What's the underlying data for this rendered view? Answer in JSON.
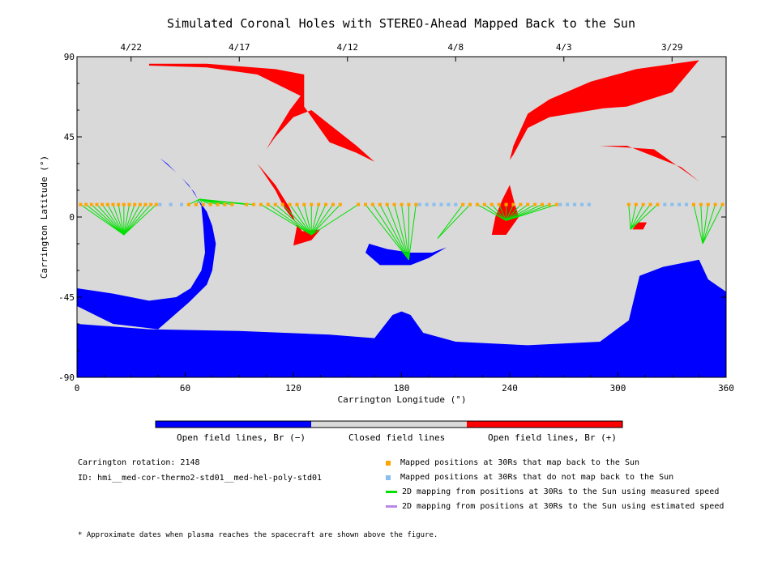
{
  "chart_data": {
    "type": "heatmap",
    "title": "Simulated Coronal Holes with STEREO-Ahead Mapped Back to the Sun",
    "xlabel": "Carrington Longitude (°)",
    "ylabel": "Carrington Latitude (°)",
    "xlim": [
      0,
      360
    ],
    "ylim": [
      -90,
      90
    ],
    "x_ticks": [
      0,
      60,
      120,
      180,
      240,
      300,
      360
    ],
    "y_ticks": [
      -90,
      -45,
      0,
      45,
      90
    ],
    "top_axis": {
      "labels": [
        {
          "label": "4/22",
          "lon": 30
        },
        {
          "label": "4/17",
          "lon": 90
        },
        {
          "label": "4/12",
          "lon": 150
        },
        {
          "label": "4/8",
          "lon": 210
        },
        {
          "label": "4/3",
          "lon": 270
        },
        {
          "label": "3/29",
          "lon": 330
        }
      ]
    },
    "colors": {
      "open_negative": "#0000ff",
      "closed": "#d9d9d9",
      "open_positive": "#ff0000",
      "mapped": "#ffa500",
      "not_mapped": "#87bff0",
      "measured": "#00e000",
      "estimated": "#b888e8"
    },
    "regions": [
      {
        "polarity": "negative",
        "polygon": [
          [
            0,
            -50
          ],
          [
            20,
            -60
          ],
          [
            45,
            -63
          ],
          [
            62,
            -48
          ],
          [
            72,
            -38
          ],
          [
            75,
            -30
          ],
          [
            77,
            -15
          ],
          [
            75,
            -5
          ],
          [
            72,
            3
          ],
          [
            67,
            10
          ],
          [
            62,
            18
          ],
          [
            55,
            25
          ],
          [
            46,
            33
          ],
          [
            50,
            30
          ],
          [
            58,
            22
          ],
          [
            65,
            14
          ],
          [
            69,
            6
          ],
          [
            70,
            -5
          ],
          [
            71,
            -20
          ],
          [
            69,
            -30
          ],
          [
            63,
            -40
          ],
          [
            55,
            -45
          ],
          [
            40,
            -47
          ],
          [
            20,
            -43
          ],
          [
            0,
            -40
          ]
        ]
      },
      {
        "polarity": "negative",
        "polygon": [
          [
            0,
            -60
          ],
          [
            40,
            -63
          ],
          [
            90,
            -64
          ],
          [
            140,
            -66
          ],
          [
            165,
            -68
          ],
          [
            175,
            -55
          ],
          [
            180,
            -53
          ],
          [
            185,
            -55
          ],
          [
            192,
            -65
          ],
          [
            210,
            -70
          ],
          [
            250,
            -72
          ],
          [
            290,
            -70
          ],
          [
            306,
            -58
          ],
          [
            312,
            -33
          ],
          [
            325,
            -28
          ],
          [
            345,
            -24
          ],
          [
            350,
            -35
          ],
          [
            360,
            -42
          ],
          [
            360,
            -90
          ],
          [
            0,
            -90
          ]
        ]
      },
      {
        "polarity": "negative",
        "polygon": [
          [
            160,
            -20
          ],
          [
            168,
            -27
          ],
          [
            185,
            -27
          ],
          [
            195,
            -23
          ],
          [
            205,
            -17
          ],
          [
            197,
            -20
          ],
          [
            185,
            -20
          ],
          [
            172,
            -18
          ],
          [
            162,
            -15
          ]
        ]
      },
      {
        "polarity": "positive",
        "polygon": [
          [
            40,
            86
          ],
          [
            72,
            86
          ],
          [
            110,
            83
          ],
          [
            126,
            80
          ],
          [
            126,
            62
          ],
          [
            140,
            42
          ],
          [
            155,
            36
          ],
          [
            165,
            31
          ],
          [
            155,
            40
          ],
          [
            140,
            52
          ],
          [
            130,
            60
          ],
          [
            120,
            56
          ],
          [
            110,
            45
          ],
          [
            105,
            38
          ],
          [
            112,
            50
          ],
          [
            118,
            60
          ],
          [
            124,
            68
          ],
          [
            100,
            80
          ],
          [
            72,
            84
          ],
          [
            40,
            85
          ]
        ]
      },
      {
        "polarity": "positive",
        "polygon": [
          [
            120,
            -16
          ],
          [
            130,
            -13
          ],
          [
            135,
            -7
          ],
          [
            125,
            -8
          ],
          [
            115,
            5
          ],
          [
            110,
            15
          ],
          [
            100,
            30
          ],
          [
            110,
            18
          ],
          [
            118,
            5
          ],
          [
            122,
            -5
          ]
        ]
      },
      {
        "polarity": "positive",
        "polygon": [
          [
            230,
            -10
          ],
          [
            238,
            -10
          ],
          [
            245,
            0
          ],
          [
            242,
            10
          ],
          [
            240,
            18
          ],
          [
            236,
            10
          ],
          [
            232,
            0
          ]
        ]
      },
      {
        "polarity": "positive",
        "polygon": [
          [
            242,
            40
          ],
          [
            250,
            58
          ],
          [
            262,
            66
          ],
          [
            285,
            76
          ],
          [
            310,
            83
          ],
          [
            345,
            88
          ],
          [
            330,
            70
          ],
          [
            305,
            62
          ],
          [
            292,
            61
          ],
          [
            262,
            56
          ],
          [
            250,
            50
          ],
          [
            242,
            35
          ],
          [
            240,
            32
          ]
        ]
      },
      {
        "polarity": "positive",
        "polygon": [
          [
            290,
            40
          ],
          [
            320,
            38
          ],
          [
            345,
            20
          ],
          [
            335,
            28
          ],
          [
            305,
            40
          ],
          [
            290,
            40
          ]
        ]
      },
      {
        "polarity": "positive",
        "polygon": [
          [
            308,
            -7
          ],
          [
            314,
            -7
          ],
          [
            316,
            -3
          ],
          [
            311,
            -3
          ]
        ]
      }
    ],
    "footpoints": [
      {
        "lon": 26,
        "lat": -10
      },
      {
        "lon": 68,
        "lat": 10
      },
      {
        "lon": 130,
        "lat": -10
      },
      {
        "lon": 184,
        "lat": -24
      },
      {
        "lon": 200,
        "lat": -12
      },
      {
        "lon": 238,
        "lat": -2
      },
      {
        "lon": 307,
        "lat": -7
      },
      {
        "lon": 347,
        "lat": -15
      }
    ],
    "mapped_positions_lon": [
      2,
      5,
      8,
      11,
      14,
      17,
      20,
      23,
      26,
      29,
      32,
      35,
      38,
      41,
      44,
      62,
      66,
      70,
      74,
      78,
      82,
      86,
      94,
      98,
      102,
      106,
      110,
      114,
      118,
      122,
      126,
      130,
      134,
      138,
      142,
      146,
      156,
      160,
      164,
      168,
      172,
      176,
      180,
      184,
      188,
      214,
      218,
      222,
      226,
      230,
      234,
      238,
      242,
      246,
      250,
      254,
      258,
      262,
      266,
      306,
      310,
      314,
      318,
      322,
      342,
      346,
      350,
      354,
      358
    ],
    "unmapped_positions_lon": [
      46,
      52,
      58,
      190,
      194,
      198,
      202,
      206,
      210,
      268,
      272,
      276,
      280,
      284,
      326,
      330,
      334,
      338
    ],
    "positions_lat": 7,
    "legend": [
      {
        "label": "Mapped positions at 30Rs that map back to the Sun",
        "swatch": "square",
        "color": "#ffa500"
      },
      {
        "label": "Mapped positions at 30Rs that do not map back to the Sun",
        "swatch": "square",
        "color": "#87bff0"
      },
      {
        "label": "2D mapping from positions at 30Rs to the Sun using measured speed",
        "swatch": "line",
        "color": "#00e000"
      },
      {
        "label": "2D mapping from positions at 30Rs to the Sun using estimated speed",
        "swatch": "line",
        "color": "#b888e8"
      }
    ],
    "colorbar": {
      "segments": [
        {
          "label": "Open field lines, Br (−)",
          "color": "#0000ff"
        },
        {
          "label": "Closed field lines",
          "color": "#d9d9d9"
        },
        {
          "label": "Open field lines, Br (+)",
          "color": "#ff0000"
        }
      ]
    },
    "annotations": {
      "rotation": "Carrington rotation: 2148",
      "model_id": "ID: hmi__med-cor-thermo2-std01__med-hel-poly-std01",
      "footnote": "* Approximate dates when plasma reaches the spacecraft are shown above the figure."
    }
  }
}
